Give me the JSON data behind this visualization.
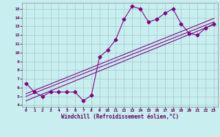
{
  "xlabel": "Windchill (Refroidissement éolien,°C)",
  "bg_color": "#c8eef0",
  "grid_color": "#9bbfc0",
  "line_color": "#800080",
  "xlim": [
    -0.5,
    23.5
  ],
  "ylim": [
    3.8,
    15.7
  ],
  "yticks": [
    4,
    5,
    6,
    7,
    8,
    9,
    10,
    11,
    12,
    13,
    14,
    15
  ],
  "xticks": [
    0,
    1,
    2,
    3,
    4,
    5,
    6,
    7,
    8,
    9,
    10,
    11,
    12,
    13,
    14,
    15,
    16,
    17,
    18,
    19,
    20,
    21,
    22,
    23
  ],
  "series1_x": [
    0,
    1,
    2,
    3,
    4,
    5,
    6,
    7,
    8,
    9,
    10,
    11,
    12,
    13,
    14,
    15,
    16,
    17,
    18,
    19,
    20,
    21,
    22,
    23
  ],
  "series1_y": [
    6.5,
    5.5,
    5.0,
    5.5,
    5.5,
    5.5,
    5.5,
    4.5,
    5.1,
    9.5,
    10.3,
    11.5,
    13.8,
    15.3,
    15.0,
    13.5,
    13.8,
    14.5,
    15.0,
    13.3,
    12.2,
    12.0,
    12.8,
    13.3
  ],
  "series2_x": [
    0,
    23
  ],
  "series2_y": [
    4.5,
    13.2
  ],
  "series3_x": [
    0,
    23
  ],
  "series3_y": [
    5.0,
    13.5
  ],
  "series4_x": [
    0,
    23
  ],
  "series4_y": [
    5.3,
    13.9
  ],
  "marker_size": 2.5
}
